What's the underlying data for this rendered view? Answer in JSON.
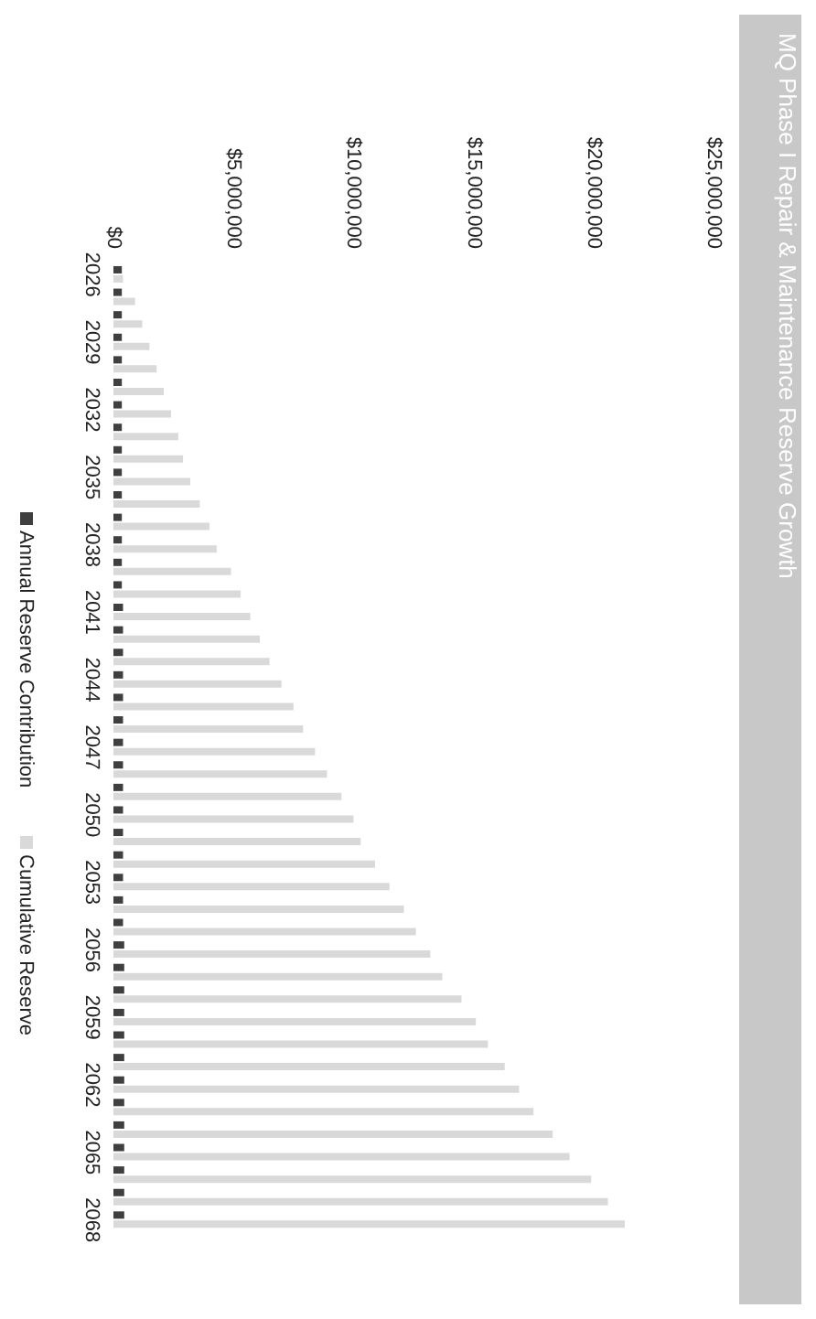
{
  "chart_data": {
    "type": "bar",
    "title": "MQ Phase I Repair & Maintenance Reserve Growth",
    "categories": [
      "2026",
      null,
      null,
      "2029",
      null,
      null,
      "2032",
      null,
      null,
      "2035",
      null,
      null,
      "2038",
      null,
      null,
      "2041",
      null,
      null,
      "2044",
      null,
      null,
      "2047",
      null,
      null,
      "2050",
      null,
      null,
      "2053",
      null,
      null,
      "2056",
      null,
      null,
      "2059",
      null,
      null,
      "2062",
      null,
      null,
      "2065",
      null,
      null,
      "2068"
    ],
    "series": [
      {
        "name": "Annual Reserve Contribution",
        "color": "#3f3f3f",
        "values": [
          350000,
          350000,
          350000,
          350000,
          350000,
          350000,
          350000,
          350000,
          350000,
          350000,
          350000,
          350000,
          350000,
          350000,
          350000,
          400000,
          400000,
          400000,
          400000,
          400000,
          400000,
          400000,
          400000,
          400000,
          400000,
          400000,
          400000,
          400000,
          400000,
          400000,
          450000,
          450000,
          450000,
          450000,
          450000,
          450000,
          450000,
          450000,
          450000,
          450000,
          450000,
          450000,
          450000
        ]
      },
      {
        "name": "Cumulative Reserve",
        "color": "#d9d9d9",
        "values": [
          400000,
          900000,
          1200000,
          1500000,
          1800000,
          2100000,
          2400000,
          2700000,
          2900000,
          3200000,
          3600000,
          4000000,
          4300000,
          4900000,
          5300000,
          5700000,
          6100000,
          6500000,
          7000000,
          7500000,
          7900000,
          8400000,
          8900000,
          9500000,
          10000000,
          10300000,
          10900000,
          11500000,
          12100000,
          12600000,
          13200000,
          13700000,
          14500000,
          15100000,
          15600000,
          16300000,
          16900000,
          17500000,
          18300000,
          19000000,
          19900000,
          20600000,
          21300000
        ]
      }
    ],
    "orientation": "horizontal",
    "xlim": [
      0,
      25000000
    ],
    "xticks": [
      {
        "value": 0,
        "label": "$0"
      },
      {
        "value": 5000000,
        "label": "$5,000,000"
      },
      {
        "value": 10000000,
        "label": "$10,000,000"
      },
      {
        "value": 15000000,
        "label": "$15,000,000"
      },
      {
        "value": 20000000,
        "label": "$20,000,000"
      },
      {
        "value": 25000000,
        "label": "$25,000,000"
      }
    ],
    "legend": "left"
  }
}
